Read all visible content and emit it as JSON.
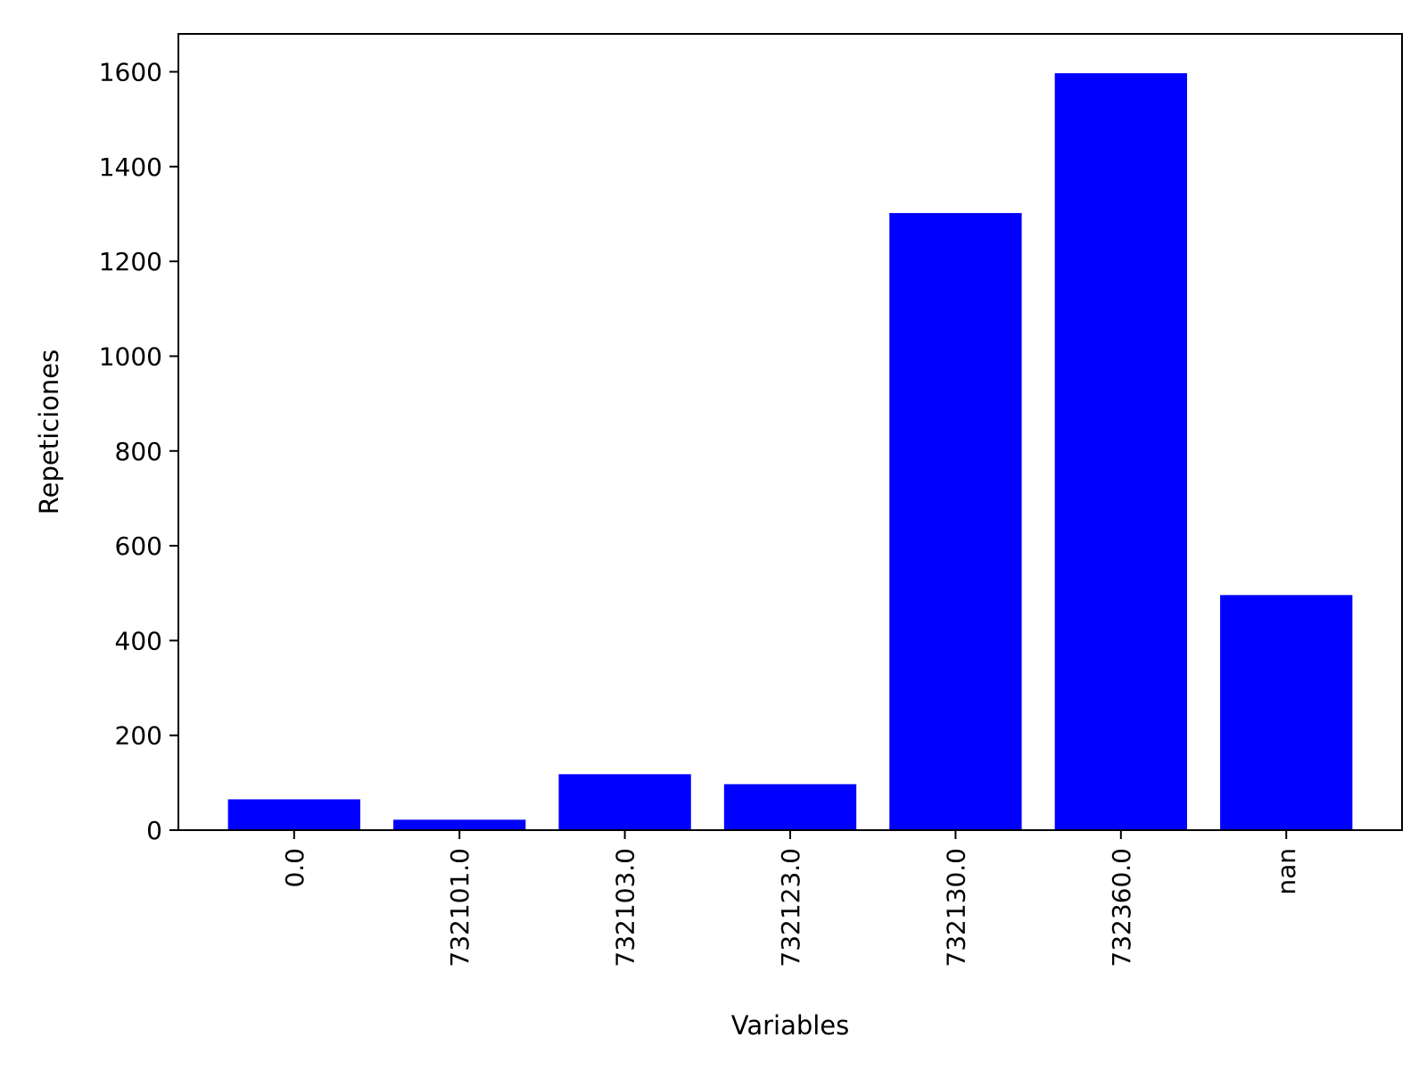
{
  "chart_data": {
    "type": "bar",
    "title": "",
    "xlabel": "Variables",
    "ylabel": "Repeticiones",
    "categories": [
      "0.0",
      "732101.0",
      "732103.0",
      "732123.0",
      "732130.0",
      "732360.0",
      "nan"
    ],
    "values": [
      65,
      22,
      118,
      97,
      1302,
      1597,
      496
    ],
    "ylim": [
      0,
      1680
    ],
    "yticks": [
      0,
      200,
      400,
      600,
      800,
      1000,
      1200,
      1400,
      1600
    ],
    "grid": false,
    "legend": "none",
    "colors": {
      "bar": "#0000ff",
      "axis": "#000000"
    }
  }
}
